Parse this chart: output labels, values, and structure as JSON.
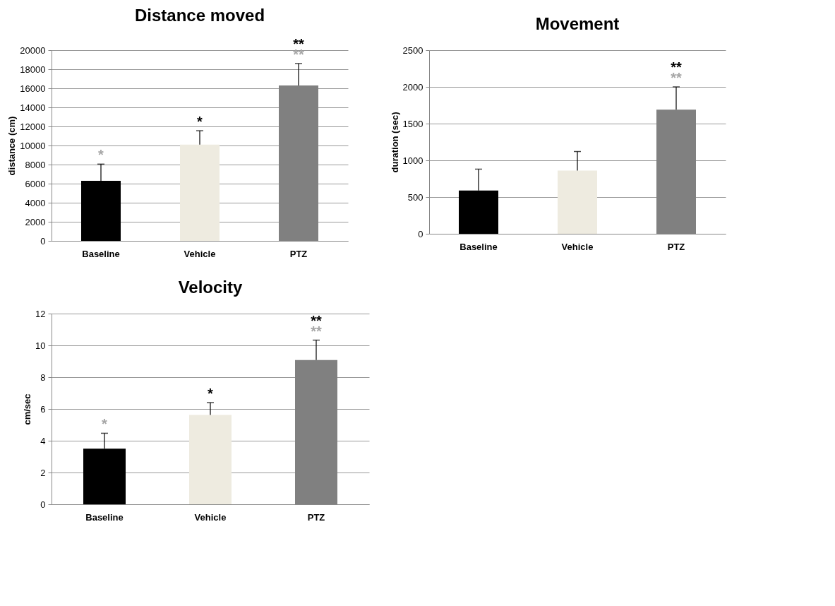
{
  "chart_data": [
    {
      "type": "bar",
      "title": "Distance moved",
      "ylabel": "distance (cm)",
      "categories": [
        "Baseline",
        "Vehicle",
        "PTZ"
      ],
      "values": [
        6300,
        10100,
        16300
      ],
      "colors": [
        "#000000",
        "#eeebe0",
        "#808080"
      ],
      "errors": [
        [
          6300,
          8050
        ],
        [
          10100,
          11550
        ],
        [
          16300,
          18600
        ]
      ],
      "ylim": [
        0,
        20000
      ],
      "yticks": [
        0,
        2000,
        4000,
        6000,
        8000,
        10000,
        12000,
        14000,
        16000,
        18000,
        20000
      ],
      "grid": "y",
      "annotations": [
        "*",
        "*",
        "**",
        "**"
      ]
    },
    {
      "type": "bar",
      "title": "Movement",
      "ylabel": "duration (sec)",
      "categories": [
        "Baseline",
        "Vehicle",
        "PTZ"
      ],
      "values": [
        590,
        860,
        1690
      ],
      "colors": [
        "#000000",
        "#eeebe0",
        "#808080"
      ],
      "errors": [
        [
          590,
          880
        ],
        [
          860,
          1120
        ],
        [
          1690,
          2000
        ]
      ],
      "ylim": [
        0,
        2500
      ],
      "yticks": [
        0,
        500,
        1000,
        1500,
        2000,
        2500
      ],
      "grid": "y",
      "annotations": [
        "**",
        "**"
      ]
    },
    {
      "type": "bar",
      "title": "Velocity",
      "ylabel": "cm/sec",
      "categories": [
        "Baseline",
        "Vehicle",
        "PTZ"
      ],
      "values": [
        3.5,
        5.62,
        9.08
      ],
      "colors": [
        "#000000",
        "#eeebe0",
        "#808080"
      ],
      "errors": [
        [
          3.5,
          4.47
        ],
        [
          5.62,
          6.4
        ],
        [
          9.08,
          10.33
        ]
      ],
      "ylim": [
        0,
        12
      ],
      "yticks": [
        0,
        2,
        4,
        6,
        8,
        10,
        12
      ],
      "grid": "y",
      "annotations": [
        "*",
        "*",
        "**",
        "**"
      ]
    }
  ]
}
